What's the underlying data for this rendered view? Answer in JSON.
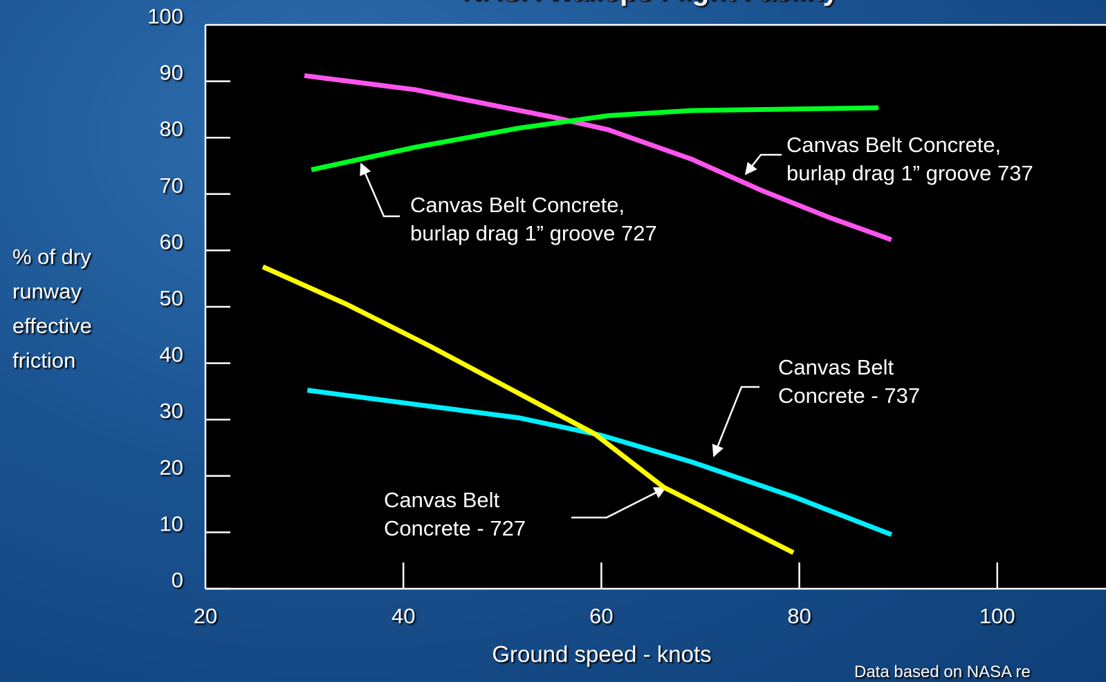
{
  "chart_data": {
    "type": "line",
    "title": "NASA Wallops Flight Facility",
    "y_label": [
      "% of dry",
      "runway",
      "effective",
      "friction"
    ],
    "x_label": "Ground speed - knots",
    "footnote": "Data based on NASA re",
    "xlim": [
      20,
      120
    ],
    "xticks": [
      20,
      40,
      60,
      80,
      100
    ],
    "ylim": [
      0,
      100
    ],
    "yticks": [
      0,
      10,
      20,
      30,
      40,
      50,
      60,
      70,
      80,
      90,
      100
    ],
    "series": [
      {
        "color": "#ff55ee",
        "label": [
          "Canvas Belt Concrete,",
          "burlap drag 1” groove 737"
        ],
        "x": [
          30,
          41.2,
          55.2,
          60.7,
          69.1,
          76.1,
          83.1,
          89.3
        ],
        "values": [
          91,
          88.5,
          83.6,
          81.4,
          76.2,
          70.7,
          65.8,
          61.9
        ]
      },
      {
        "color": "#00ff22",
        "label": [
          "Canvas Belt Concrete,",
          "burlap drag 1” groove 727"
        ],
        "x": [
          30.7,
          41.2,
          51.7,
          60.7,
          69.1,
          88
        ],
        "values": [
          74.3,
          78.3,
          81.7,
          83.9,
          84.8,
          85.3
        ]
      },
      {
        "color": "#00eeff",
        "label": [
          "Canvas Belt",
          "Concrete - 737"
        ],
        "x": [
          30.3,
          41.2,
          51.7,
          60,
          69.1,
          79.6,
          89.3
        ],
        "values": [
          35.2,
          32.7,
          30.3,
          27.2,
          22.5,
          16.2,
          9.6
        ]
      },
      {
        "color": "#ffff00",
        "label": [
          "Canvas Belt",
          "Concrete - 727"
        ],
        "x": [
          25.8,
          34.2,
          42.6,
          51.7,
          59.3,
          66.3,
          79.4
        ],
        "values": [
          57.1,
          50.5,
          43.1,
          34.6,
          27.5,
          18.0,
          6.4
        ]
      }
    ]
  }
}
